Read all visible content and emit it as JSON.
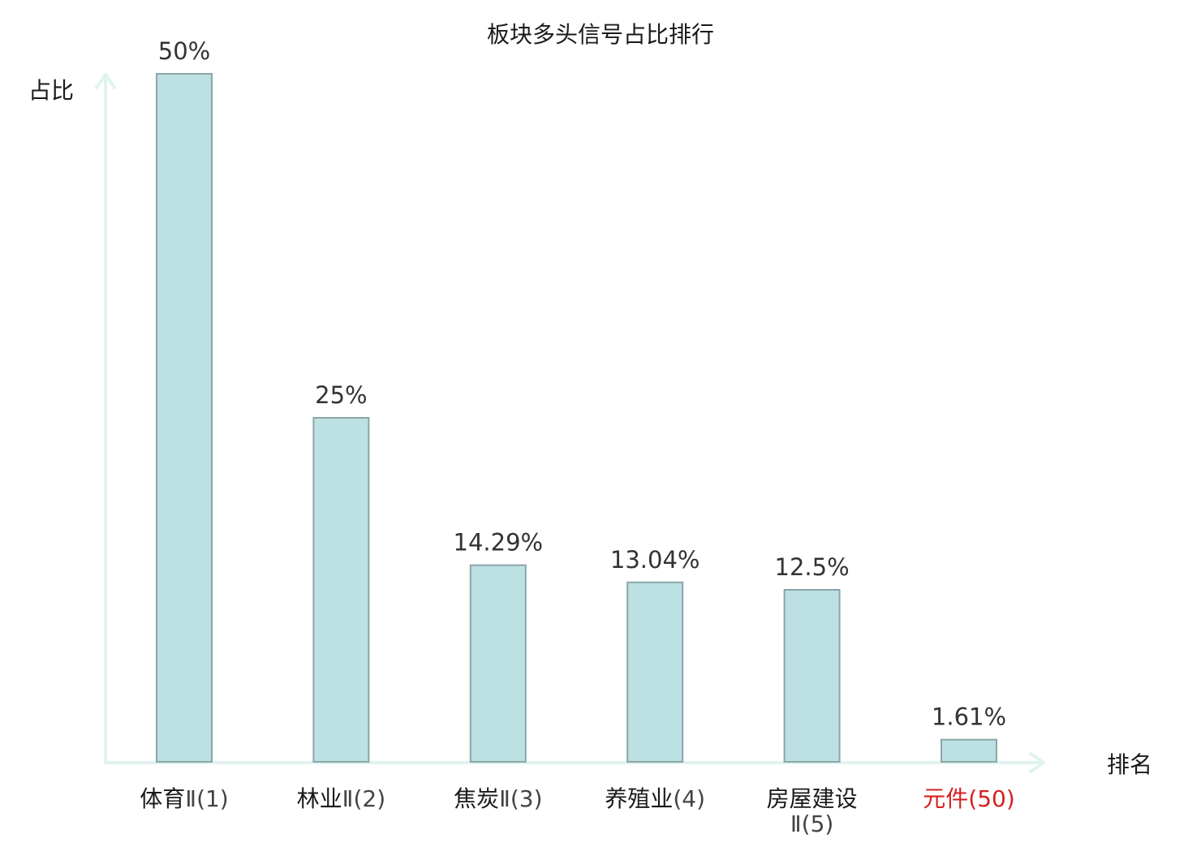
{
  "chart_data": {
    "type": "bar",
    "title": "板块多头信号占比排行",
    "ylabel": "占比",
    "xlabel": "排名",
    "ylim": [
      0,
      50
    ],
    "grid": false,
    "legend": "none",
    "categories": [
      {
        "name": "体育",
        "suffix": "Ⅱ(1)",
        "highlight": false
      },
      {
        "name": "林业",
        "suffix": "Ⅱ(2)",
        "highlight": false
      },
      {
        "name": "焦炭",
        "suffix": "Ⅱ(3)",
        "highlight": false
      },
      {
        "name": "养殖业",
        "suffix": "(4)",
        "highlight": false
      },
      {
        "name": "房屋建设",
        "suffix": "Ⅱ(5)",
        "highlight": false,
        "wrap": true
      },
      {
        "name": "元件",
        "suffix": "(50)",
        "highlight": true
      }
    ],
    "values": [
      50,
      25,
      14.29,
      13.04,
      12.5,
      1.61
    ],
    "value_labels": [
      "50%",
      "25%",
      "14.29%",
      "13.04%",
      "12.5%",
      "1.61%"
    ],
    "colors": {
      "bar_fill": "#bde0e3",
      "bar_stroke": "#8aa6aa",
      "axis": "#e0f3ef",
      "label_text": "#333333",
      "category_text": "#1a1a1a",
      "suffix_text": "#444444",
      "highlight": "#d62020"
    }
  }
}
